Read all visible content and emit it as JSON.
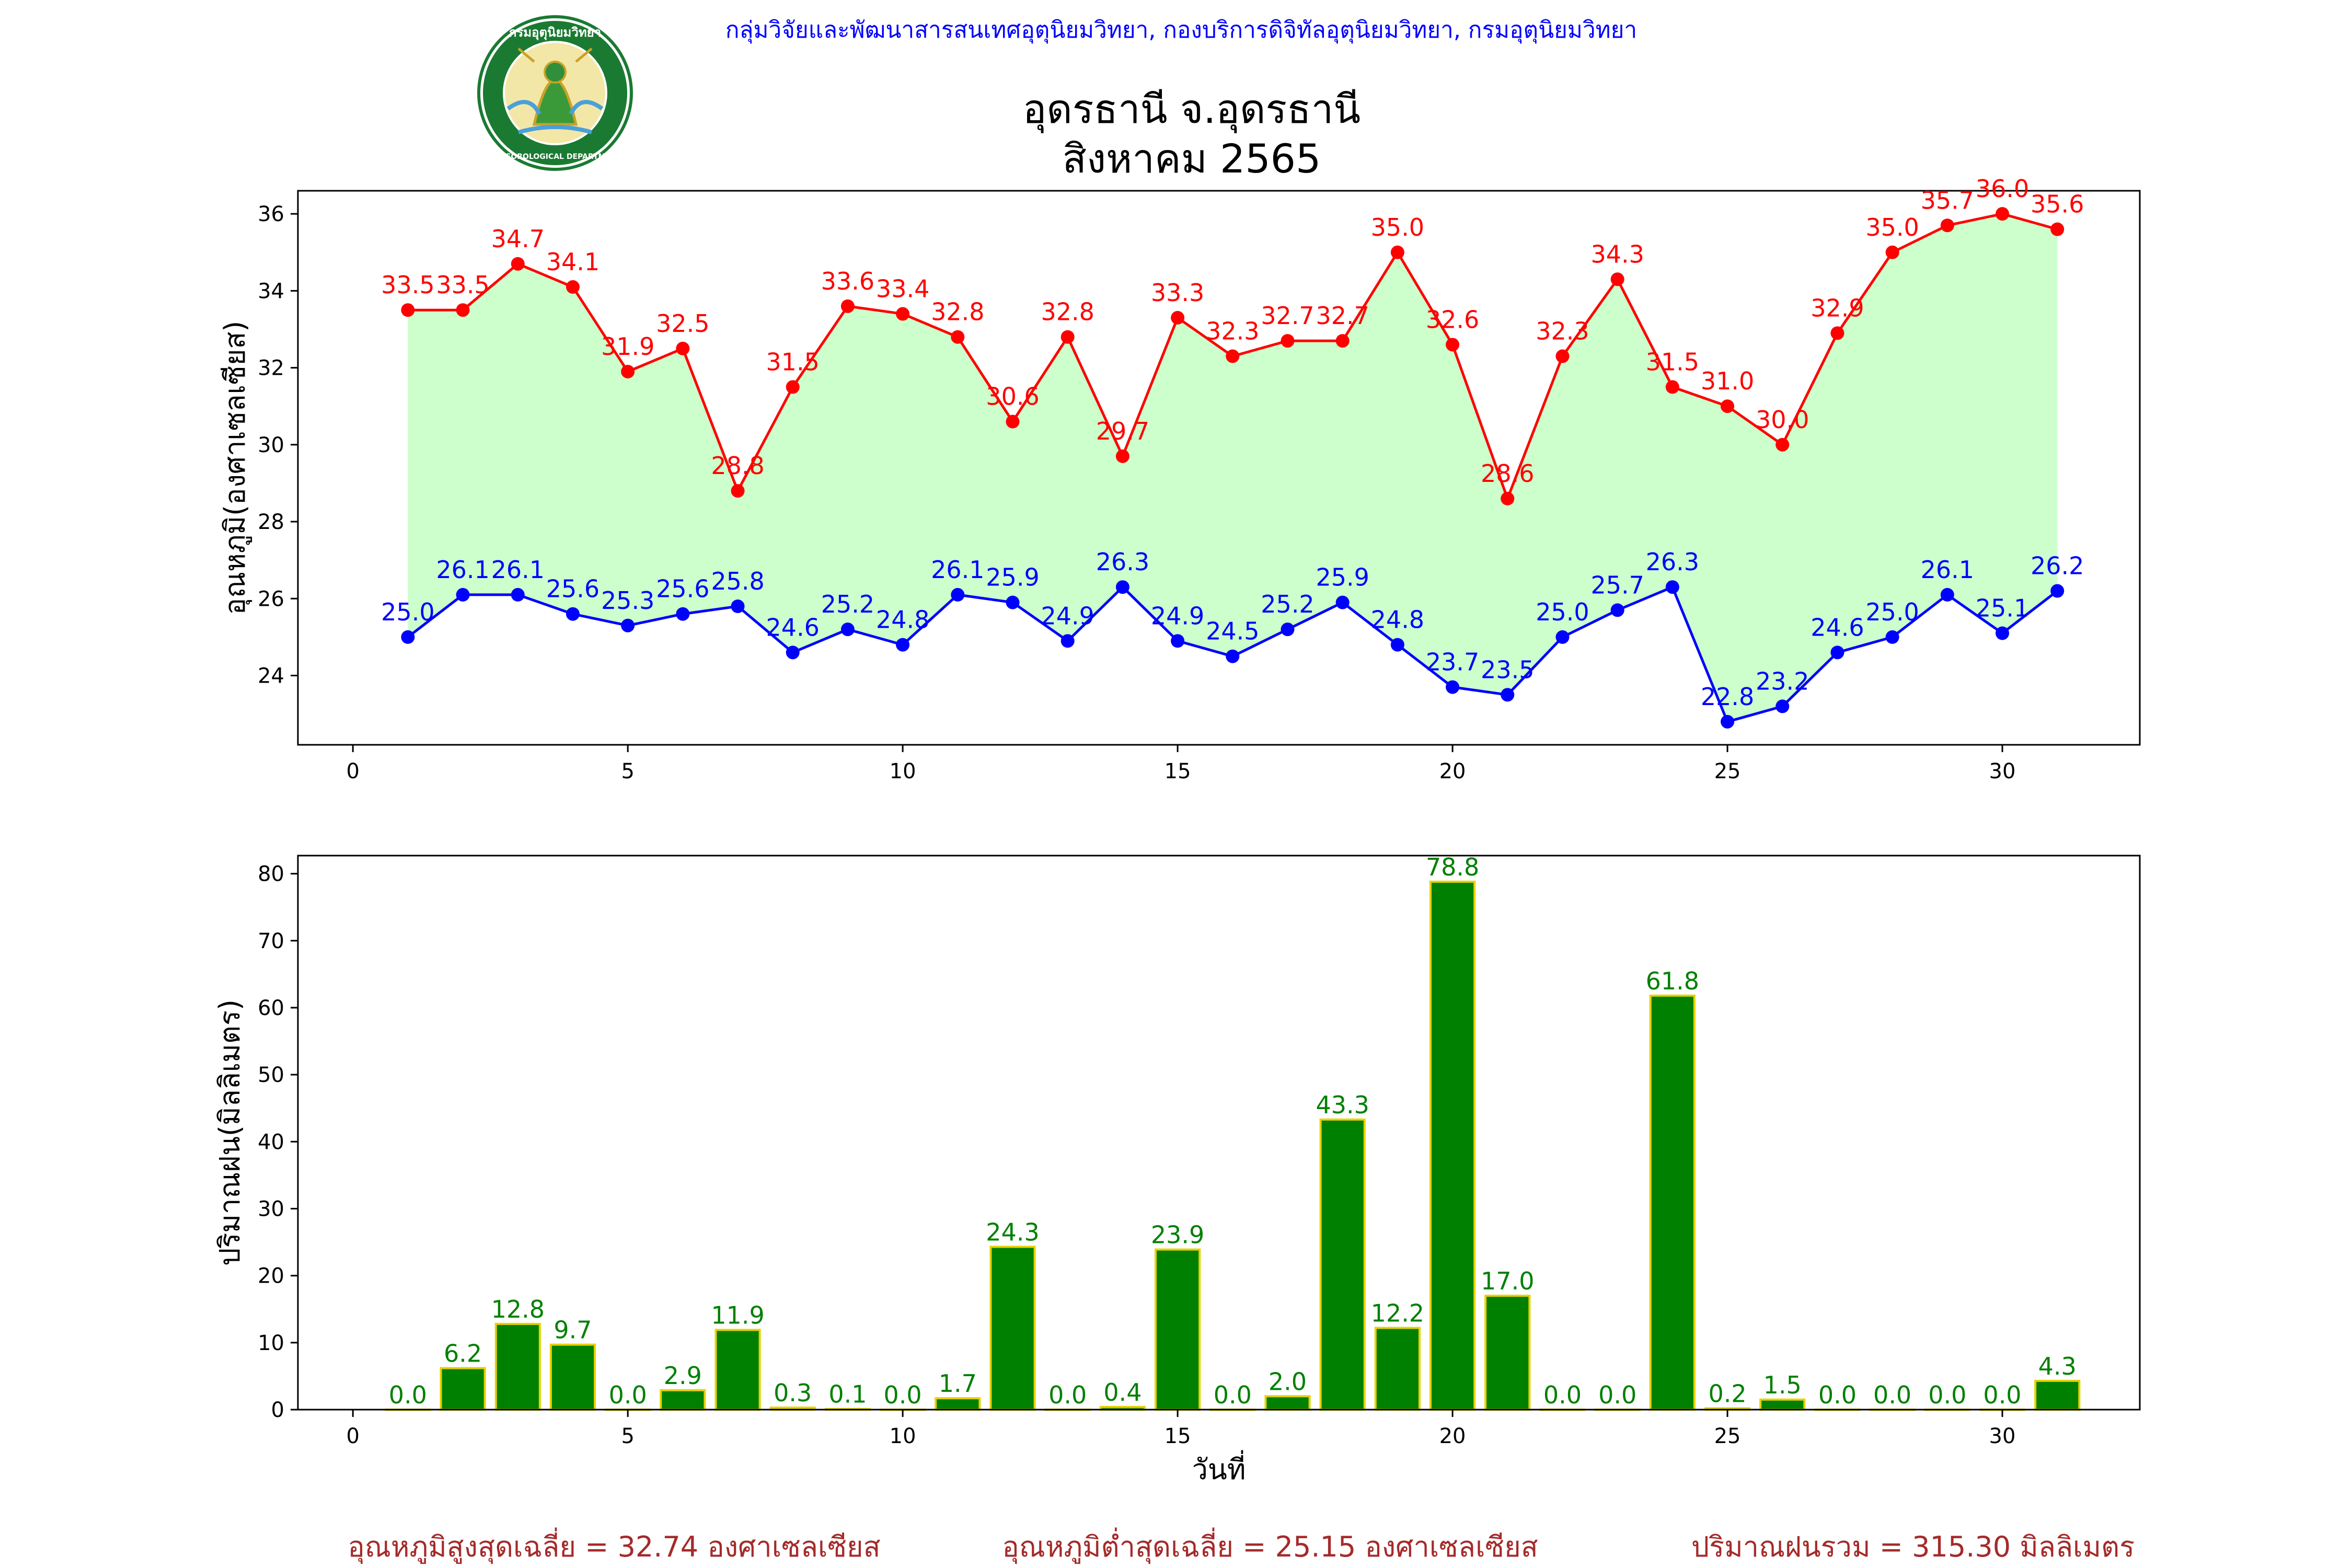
{
  "header": {
    "org_line": "กลุ่มวิจัยและพัฒนาสารสนเทศอุตุนิยมวิทยา, กองบริการดิจิทัลอุตุนิยมวิทยา, กรมอุตุนิยมวิทยา",
    "title_line1": "อุดรธานี จ.อุดรธานี",
    "title_line2": "สิงหาคม 2565"
  },
  "logo": {
    "top_text": "กรมอุตุนิยมวิทยา",
    "bottom_text": "METEOROLOGICAL DEPARTMENT",
    "ring_color": "#1a7a32",
    "inner_color": "#f3e7a8"
  },
  "chart_data": [
    {
      "type": "line",
      "ylabel": "อุณหภูมิ(องศาเซลเซียส)",
      "xlabel": "",
      "xlim": [
        -1,
        32.5
      ],
      "ylim": [
        22.2,
        36.6
      ],
      "xticks": [
        0,
        5,
        10,
        15,
        20,
        25,
        30
      ],
      "yticks": [
        24,
        26,
        28,
        30,
        32,
        34,
        36
      ],
      "grid": false,
      "fill_between_color": "#ccffcc",
      "x": [
        1,
        2,
        3,
        4,
        5,
        6,
        7,
        8,
        9,
        10,
        11,
        12,
        13,
        14,
        15,
        16,
        17,
        18,
        19,
        20,
        21,
        22,
        23,
        24,
        25,
        26,
        27,
        28,
        29,
        30,
        31
      ],
      "series": [
        {
          "color": "#ff0000",
          "values": [
            33.5,
            33.5,
            34.7,
            34.1,
            31.9,
            32.5,
            28.8,
            31.5,
            33.6,
            33.4,
            32.8,
            30.6,
            32.8,
            29.7,
            33.3,
            32.3,
            32.7,
            32.7,
            35.0,
            32.6,
            28.6,
            32.3,
            34.3,
            31.5,
            31.0,
            30.0,
            32.9,
            35.0,
            35.7,
            36.0,
            35.6
          ]
        },
        {
          "color": "#0000ff",
          "values": [
            25.0,
            26.1,
            26.1,
            25.6,
            25.3,
            25.6,
            25.8,
            24.6,
            25.2,
            24.8,
            26.1,
            25.9,
            24.9,
            26.3,
            24.9,
            24.5,
            25.2,
            25.9,
            24.8,
            23.7,
            23.5,
            25.0,
            25.7,
            26.3,
            22.8,
            23.2,
            24.6,
            25.0,
            26.1,
            25.1,
            26.2
          ]
        }
      ]
    },
    {
      "type": "bar",
      "ylabel": "ปริมาณฝน(มิลลิเมตร)",
      "xlabel": "วันที่",
      "xlim": [
        -1,
        32.5
      ],
      "ylim": [
        0,
        82.7
      ],
      "xticks": [
        0,
        5,
        10,
        15,
        20,
        25,
        30
      ],
      "yticks": [
        0,
        10,
        20,
        30,
        40,
        50,
        60,
        70,
        80
      ],
      "grid": false,
      "bar_color": "#008000",
      "bar_edge_color": "#e6d200",
      "label_color": "#008000",
      "x": [
        1,
        2,
        3,
        4,
        5,
        6,
        7,
        8,
        9,
        10,
        11,
        12,
        13,
        14,
        15,
        16,
        17,
        18,
        19,
        20,
        21,
        22,
        23,
        24,
        25,
        26,
        27,
        28,
        29,
        30,
        31
      ],
      "values": [
        0.0,
        6.2,
        12.8,
        9.7,
        0.0,
        2.9,
        11.9,
        0.3,
        0.1,
        0.0,
        1.7,
        24.3,
        0.0,
        0.4,
        23.9,
        0.0,
        2.0,
        43.3,
        12.2,
        78.8,
        17.0,
        0.0,
        0.0,
        61.8,
        0.2,
        1.5,
        0.0,
        0.0,
        0.0,
        0.0,
        4.3
      ]
    }
  ],
  "footer": {
    "avg_max": "อุณหภูมิสูงสุดเฉลี่ย = 32.74 องศาเซลเซียส",
    "avg_min": "อุณหภูมิต่ำสุดเฉลี่ย = 25.15 องศาเซลเซียส",
    "total_rain": "ปริมาณฝนรวม = 315.30 มิลลิเมตร",
    "color": "#a52a2a"
  }
}
